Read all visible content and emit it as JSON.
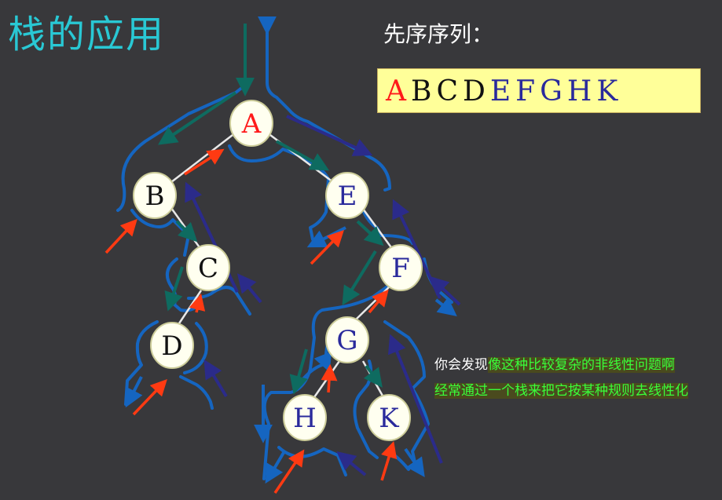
{
  "title": "栈的应用",
  "sequence": {
    "label": "先序序列：",
    "letters": [
      {
        "text": "A",
        "style": "c-red"
      },
      {
        "text": "B",
        "style": "c-black"
      },
      {
        "text": "C",
        "style": "c-black"
      },
      {
        "text": "D",
        "style": "c-black"
      },
      {
        "text": "E",
        "style": "c-blue"
      },
      {
        "text": "F",
        "style": "c-blue"
      },
      {
        "text": "G",
        "style": "c-blue"
      },
      {
        "text": "H",
        "style": "c-blue"
      },
      {
        "text": "K",
        "style": "c-blue"
      }
    ]
  },
  "tree": {
    "nodes": [
      {
        "id": "A",
        "label": "A",
        "color": "#ff1a1a"
      },
      {
        "id": "B",
        "label": "B",
        "color": "#111111"
      },
      {
        "id": "C",
        "label": "C",
        "color": "#111111"
      },
      {
        "id": "D",
        "label": "D",
        "color": "#111111"
      },
      {
        "id": "E",
        "label": "E",
        "color": "#2a2a9c"
      },
      {
        "id": "F",
        "label": "F",
        "color": "#2a2a9c"
      },
      {
        "id": "G",
        "label": "G",
        "color": "#2a2a9c"
      },
      {
        "id": "H",
        "label": "H",
        "color": "#2a2a9c"
      },
      {
        "id": "K",
        "label": "K",
        "color": "#2a2a9c"
      }
    ],
    "edges": [
      [
        "A",
        "B"
      ],
      [
        "A",
        "E"
      ],
      [
        "B",
        "C"
      ],
      [
        "C",
        "D"
      ],
      [
        "E",
        "F"
      ],
      [
        "F",
        "G"
      ],
      [
        "G",
        "H"
      ],
      [
        "G",
        "K"
      ]
    ],
    "colors": {
      "node_fill": "#fffff0",
      "node_stroke": "#cccc99",
      "edge": "#e8e8e8",
      "outline": "#1565c0",
      "teal_arrow": "#0e6b60",
      "navy_arrow": "#2b2b8a",
      "red_arrow": "#ff3a12",
      "blue_arrow": "#1565c0"
    }
  },
  "note": {
    "line1_plain": "你会发现",
    "line1_highlight": "像这种比较复杂的非线性问题啊",
    "line2_highlight": "经常通过一个栈来把它按某种规则去线性化"
  }
}
